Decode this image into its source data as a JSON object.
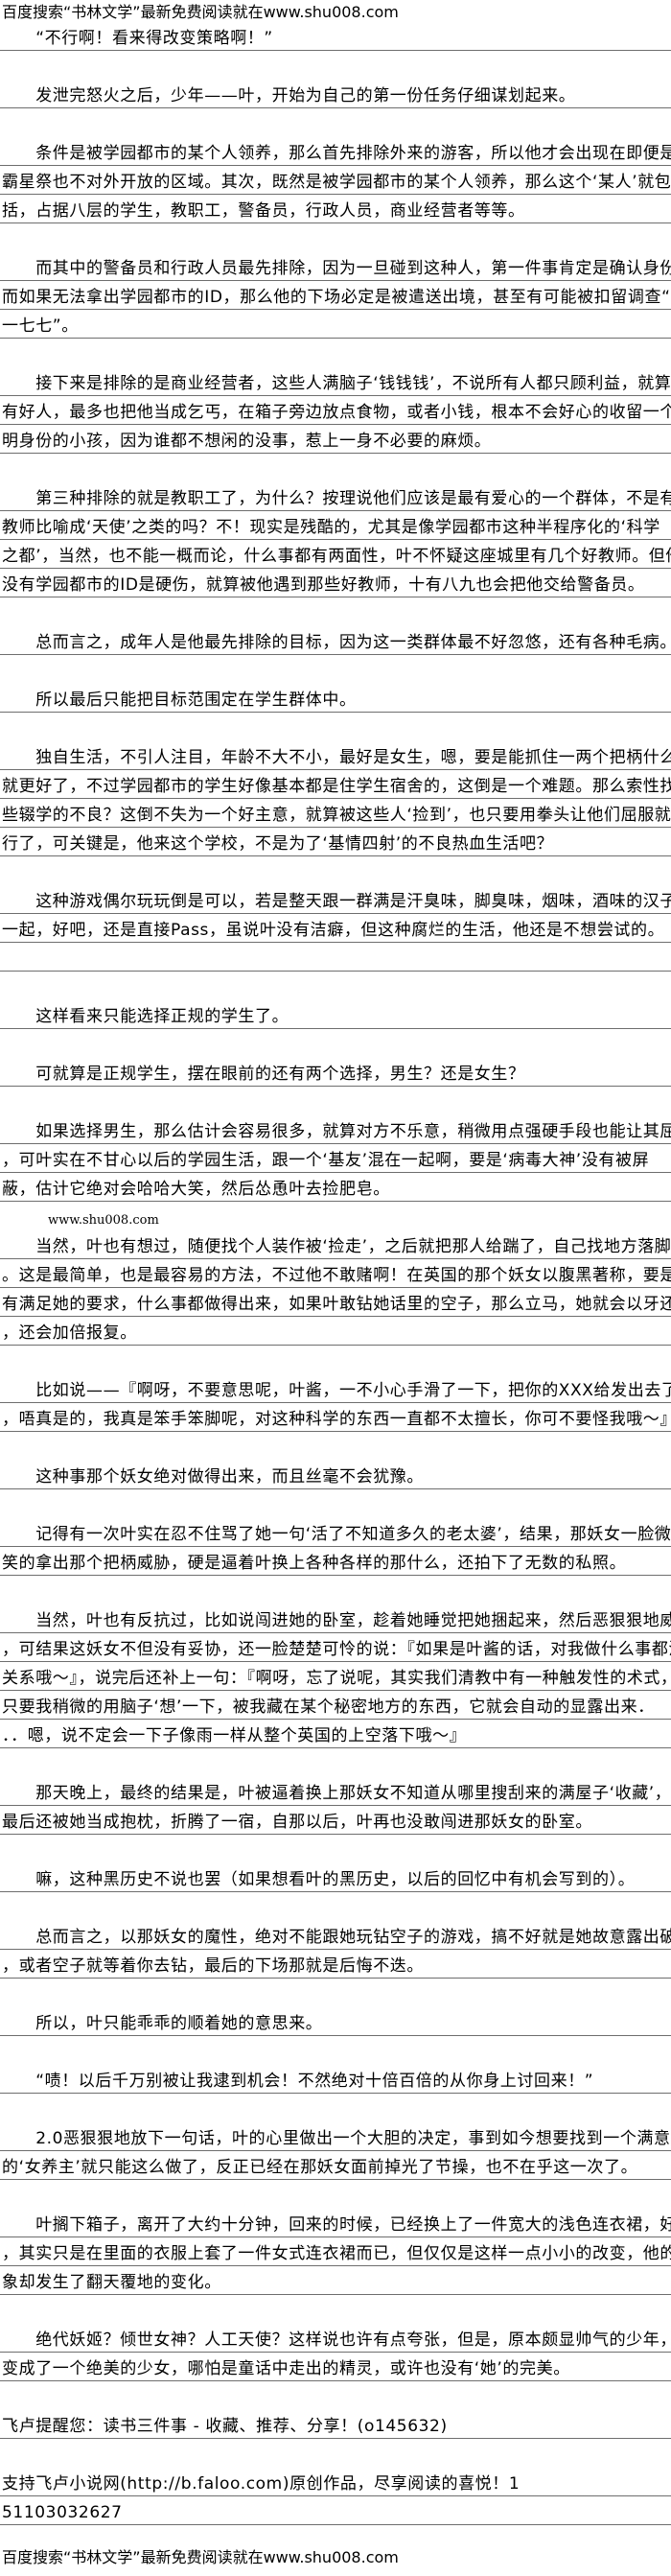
{
  "header": "百度搜索“书林文学”最新免费阅读就在www.shu008.com",
  "watermark": "www.shu008.com",
  "footer": "百度搜索“书林文学”最新免费阅读就在www.shu008.com",
  "lines": [
    {
      "text": "　　“不行啊！看来得改变策略啊！”",
      "ruled": true
    },
    {
      "text": "",
      "ruled": false
    },
    {
      "text": "　　发泄完怒火之后，少年——叶，开始为自己的第一份任务仔细谋划起来。",
      "ruled": true
    },
    {
      "text": "",
      "ruled": false
    },
    {
      "text": "　　条件是被学园都市的某个人领养，那么首先排除外来的游客，所以他才会出现在即便是大",
      "ruled": true
    },
    {
      "text": "霸星祭也不对外开放的区域。其次，既然是被学园都市的某个人领养，那么这个‘某人’就包",
      "ruled": true
    },
    {
      "text": "括，占据八层的学生，教职工，警备员，行政人员，商业经营者等等。",
      "ruled": true
    },
    {
      "text": "",
      "ruled": false
    },
    {
      "text": "　　而其中的警备员和行政人员最先排除，因为一旦碰到这种人，第一件事肯定是确认身份，",
      "ruled": true
    },
    {
      "text": "而如果无法拿出学园都市的ID，那么他的下场必定是被遣送出境，甚至有可能被扣留调查“",
      "ruled": true
    },
    {
      "text": "一七七”。",
      "ruled": true
    },
    {
      "text": "",
      "ruled": false
    },
    {
      "text": "　　接下来是排除的是商业经营者，这些人满脑子‘钱钱钱’，不说所有人都只顾利益，就算",
      "ruled": true
    },
    {
      "text": "有好人，最多也把他当成乞丐，在箱子旁边放点食物，或者小钱，根本不会好心的收留一个不",
      "ruled": true
    },
    {
      "text": "明身份的小孩，因为谁都不想闲的没事，惹上一身不必要的麻烦。",
      "ruled": true
    },
    {
      "text": "",
      "ruled": false
    },
    {
      "text": "　　第三种排除的就是教职工了，为什么？按理说他们应该是最有爱心的一个群体，不是有把",
      "ruled": true
    },
    {
      "text": "教师比喻成‘天使’之类的吗？不！现实是残酷的，尤其是像学园都市这种半程序化的‘科学",
      "ruled": true
    },
    {
      "text": "之都’，当然，也不能一概而论，什么事都有两面性，叶不怀疑这座城里有几个好教师。但他",
      "ruled": true
    },
    {
      "text": "没有学园都市的ID是硬伤，就算被他遇到那些好教师，十有八九也会把他交给警备员。",
      "ruled": true
    },
    {
      "text": "",
      "ruled": false
    },
    {
      "text": "　　总而言之，成年人是他最先排除的目标，因为这一类群体最不好忽悠，还有各种毛病。",
      "ruled": true
    },
    {
      "text": "",
      "ruled": false
    },
    {
      "text": "　　所以最后只能把目标范围定在学生群体中。",
      "ruled": true
    },
    {
      "text": "",
      "ruled": false
    },
    {
      "text": "　　独自生活，不引人注目，年龄不大不小，最好是女生，嗯，要是能抓住一两个把柄什么的",
      "ruled": true
    },
    {
      "text": "就更好了，不过学园都市的学生好像基本都是住学生宿舍的，这倒是一个难题。那么索性找那",
      "ruled": true
    },
    {
      "text": "些辍学的不良？这倒不失为一个好主意，就算被这些人‘捡到’，也只要用拳头让他们屈服就",
      "ruled": true
    },
    {
      "text": "行了，可关键是，他来这个学校，不是为了‘基情四射’的不良热血生活吧？",
      "ruled": true
    },
    {
      "text": "",
      "ruled": false
    },
    {
      "text": "　　这种游戏偶尔玩玩倒是可以，若是整天跟一群满是汗臭味，脚臭味，烟味，酒味的汉子待",
      "ruled": true
    },
    {
      "text": "一起，好吧，还是直接Pass，虽说叶没有洁癖，但这种腐烂的生活，他还是不想尝试的。",
      "ruled": true
    },
    {
      "text": "",
      "ruled": true
    },
    {
      "text": "",
      "ruled": false
    },
    {
      "text": "　　这样看来只能选择正规的学生了。",
      "ruled": true
    },
    {
      "text": "",
      "ruled": false
    },
    {
      "text": "　　可就算是正规学生，摆在眼前的还有两个选择，男生？还是女生？",
      "ruled": true
    },
    {
      "text": "",
      "ruled": false
    },
    {
      "text": "　　如果选择男生，那么估计会容易很多，就算对方不乐意，稍微用点强硬手段也能让其屈服",
      "ruled": true
    },
    {
      "text": "，可叶实在不甘心以后的学园生活，跟一个‘基友’混在一起啊，要是‘病毒大神’没有被屏",
      "ruled": true
    },
    {
      "text": "蔽，估计它绝对会哈哈大笑，然后怂恿叶去捡肥皂。",
      "ruled": true
    },
    {
      "text": "",
      "ruled": false
    },
    {
      "text": "　　当然，叶也有想过，随便找个人装作被‘捡走’，之后就把那人给踹了，自己找地方落脚",
      "ruled": true
    },
    {
      "text": "。这是最简单，也是最容易的方法，不过他不敢赌啊！在英国的那个妖女以腹黑著称，要是没",
      "ruled": true
    },
    {
      "text": "有满足她的要求，什么事都做得出来，如果叶敢钻她话里的空子，那么立马，她就会以牙还牙",
      "ruled": true
    },
    {
      "text": "，还会加倍报复。",
      "ruled": true
    },
    {
      "text": "",
      "ruled": false
    },
    {
      "text": "　　比如说——『啊呀，不要意思呢，叶酱，一不小心手滑了一下，把你的XXX给发出去了",
      "ruled": true
    },
    {
      "text": "，唔真是的，我真是笨手笨脚呢，对这种科学的东西一直都不太擅长，你可不要怪我哦～』",
      "ruled": true
    },
    {
      "text": "",
      "ruled": false
    },
    {
      "text": "　　这种事那个妖女绝对做得出来，而且丝毫不会犹豫。",
      "ruled": true
    },
    {
      "text": "",
      "ruled": false
    },
    {
      "text": "　　记得有一次叶实在忍不住骂了她一句‘活了不知道多久的老太婆’，结果，那妖女一脸微",
      "ruled": true
    },
    {
      "text": "笑的拿出那个把柄威胁，硬是逼着叶换上各种各样的那什么，还拍下了无数的私照。",
      "ruled": true
    },
    {
      "text": "",
      "ruled": false
    },
    {
      "text": "　　当然，叶也有反抗过，比如说闯进她的卧室，趁着她睡觉把她捆起来，然后恶狠狠地威胁",
      "ruled": true
    },
    {
      "text": "，可结果这妖女不但没有妥协，还一脸楚楚可怜的说：『如果是叶酱的话，对我做什么事都没",
      "ruled": true
    },
    {
      "text": "关系哦～』，说完后还补上一句：『啊呀，忘了说呢，其实我们清教中有一种触发性的术式，",
      "ruled": true
    },
    {
      "text": "只要我稍微的用脑子‘想’一下，被我藏在某个秘密地方的东西，它就会自动的显露出来．",
      "ruled": true
    },
    {
      "text": "．．嗯，说不定会一下子像雨一样从整个英国的上空落下哦～』",
      "ruled": true
    },
    {
      "text": "",
      "ruled": false
    },
    {
      "text": "　　那天晚上，最终的结果是，叶被逼着换上那妖女不知道从哪里搜刮来的满屋子‘收藏’，",
      "ruled": true
    },
    {
      "text": "最后还被她当成抱枕，折腾了一宿，自那以后，叶再也没敢闯进那妖女的卧室。",
      "ruled": true
    },
    {
      "text": "",
      "ruled": false
    },
    {
      "text": "　　嘛，这种黑历史不说也罢（如果想看叶的黑历史，以后的回忆中有机会写到的）。",
      "ruled": true
    },
    {
      "text": "",
      "ruled": false
    },
    {
      "text": "　　总而言之，以那妖女的魔性，绝对不能跟她玩钻空子的游戏，搞不好就是她故意露出破绽",
      "ruled": true
    },
    {
      "text": "，或者空子就等着你去钻，最后的下场那就是后悔不迭。",
      "ruled": true
    },
    {
      "text": "",
      "ruled": false
    },
    {
      "text": "　　所以，叶只能乖乖的顺着她的意思来。",
      "ruled": true
    },
    {
      "text": "",
      "ruled": false
    },
    {
      "text": "　　“啧！以后千万别被让我逮到机会！不然绝对十倍百倍的从你身上讨回来！”",
      "ruled": true
    },
    {
      "text": "",
      "ruled": false
    },
    {
      "text": "　　2.0恶狠狠地放下一句话，叶的心里做出一个大胆的决定，事到如今想要找到一个满意",
      "ruled": true
    },
    {
      "text": "的‘女养主’就只能这么做了，反正已经在那妖女面前掉光了节操，也不在乎这一次了。",
      "ruled": true
    },
    {
      "text": "",
      "ruled": false
    },
    {
      "text": "　　叶搁下箱子，离开了大约十分钟，回来的时候，已经换上了一件宽大的浅色连衣裙，好吧",
      "ruled": true
    },
    {
      "text": "，其实只是在里面的衣服上套了一件女式连衣裙而已，但仅仅是这样一点小小的改变，他的形",
      "ruled": true
    },
    {
      "text": "象却发生了翻天覆地的变化。",
      "ruled": true
    },
    {
      "text": "",
      "ruled": false
    },
    {
      "text": "　　绝代妖姬？倾世女神？人工天使？这样说也许有点夸张，但是，原本颇显帅气的少年，却",
      "ruled": true
    },
    {
      "text": "变成了一个绝美的少女，哪怕是童话中走出的精灵，或许也没有‘她’的完美。",
      "ruled": true
    },
    {
      "text": "",
      "ruled": false
    },
    {
      "text": "飞卢提醒您：读书三件事 - 收藏、推荐、分享！(o145632)",
      "ruled": true
    },
    {
      "text": "",
      "ruled": false
    },
    {
      "text": "支持飞卢小说网(http://b.faloo.com)原创作品，尽享阅读的喜悦！1",
      "ruled": true
    },
    {
      "text": "51103032627",
      "ruled": true
    }
  ]
}
